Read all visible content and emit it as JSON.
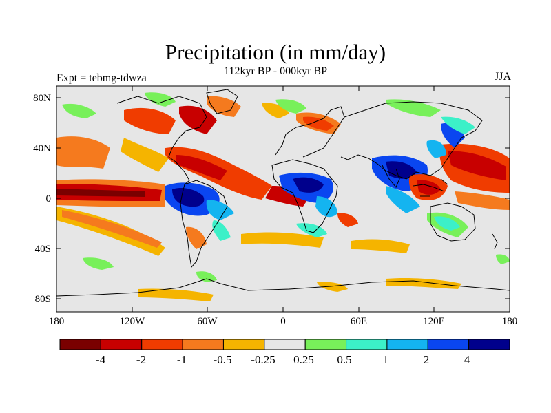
{
  "title": "Precipitation (in mm/day)",
  "subtitle": "112kyr BP - 000kyr BP",
  "left_label": "Expt = tebmg-tdwza",
  "season": "JJA",
  "lat_ticks": [
    "80N",
    "40N",
    "0",
    "40S",
    "80S"
  ],
  "lon_ticks": [
    "180",
    "120W",
    "60W",
    "0",
    "60E",
    "120E",
    "180"
  ],
  "colorbar": {
    "colors": [
      "#7a0000",
      "#c80000",
      "#f03c00",
      "#f57a1e",
      "#f5b400",
      "#e6e6e6",
      "#78f05a",
      "#3cf0c8",
      "#14b4f0",
      "#0a46f0",
      "#00008c"
    ],
    "labels": [
      "-4",
      "-2",
      "-1",
      "-0.5",
      "-0.25",
      "0.25",
      "0.5",
      "1",
      "2",
      "4"
    ]
  },
  "colors": {
    "land_outline": "#000000",
    "neutral_fill": "#e6e6e6"
  }
}
